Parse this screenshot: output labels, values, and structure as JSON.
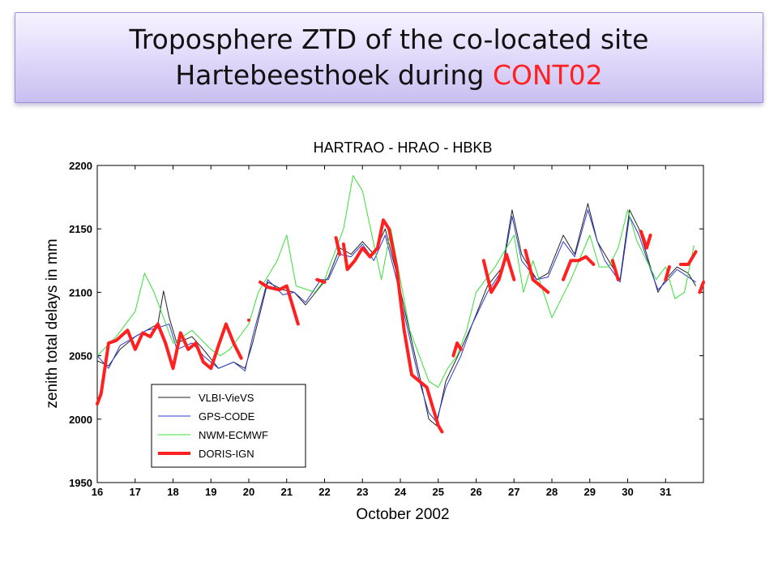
{
  "slide": {
    "title_line1": "Troposphere ZTD of the co-located site",
    "title_line2_prefix": "Hartebeesthoek during ",
    "title_line2_highlight": "CONT02",
    "highlight_color": "#ff2020"
  },
  "chart_data": {
    "type": "line",
    "title": "HARTRAO  - HRAO - HBKB",
    "xlabel": "October 2002",
    "ylabel": "zenith total delays in mm",
    "xlim": [
      16,
      32
    ],
    "ylim": [
      1950,
      2200
    ],
    "xticks": [
      16,
      17,
      18,
      19,
      20,
      21,
      22,
      23,
      24,
      25,
      26,
      27,
      28,
      29,
      30,
      31
    ],
    "yticks": [
      1950,
      2000,
      2050,
      2100,
      2150,
      2200
    ],
    "grid": false,
    "legend_position": "lower-left",
    "series": [
      {
        "name": "VLBI-VieVS",
        "color": "#222222",
        "width": 1,
        "x": [
          16.0,
          16.3,
          16.6,
          17.0,
          17.3,
          17.6,
          17.75,
          17.9,
          18.1,
          18.5,
          18.8,
          19.2,
          19.6,
          19.9,
          20.1,
          20.5,
          20.9,
          21.2,
          21.5,
          21.9,
          22.1,
          22.4,
          22.7,
          23.0,
          23.3,
          23.6,
          23.9,
          24.2,
          24.5,
          24.75,
          24.95,
          25.2,
          25.6,
          25.9,
          26.3,
          26.7,
          26.95,
          27.2,
          27.6,
          27.9,
          28.3,
          28.6,
          28.95,
          29.2,
          29.4,
          29.8,
          30.05,
          30.3,
          30.6,
          30.8,
          31.0,
          31.3,
          31.6,
          31.8
        ],
        "y": [
          2046,
          2042,
          2055,
          2065,
          2070,
          2075,
          2101,
          2080,
          2060,
          2065,
          2055,
          2040,
          2045,
          2040,
          2060,
          2108,
          2102,
          2100,
          2090,
          2105,
          2112,
          2135,
          2130,
          2140,
          2130,
          2150,
          2115,
          2075,
          2035,
          2000,
          1995,
          2030,
          2055,
          2075,
          2105,
          2120,
          2165,
          2130,
          2110,
          2115,
          2145,
          2130,
          2170,
          2140,
          2130,
          2110,
          2165,
          2150,
          2120,
          2100,
          2110,
          2120,
          2115,
          2105
        ]
      },
      {
        "name": "GPS-CODE",
        "color": "#2a3bd0",
        "width": 1,
        "x": [
          16.0,
          16.3,
          16.6,
          17.0,
          17.3,
          17.6,
          17.9,
          18.1,
          18.5,
          18.8,
          19.2,
          19.6,
          19.9,
          20.1,
          20.5,
          20.9,
          21.2,
          21.5,
          21.9,
          22.1,
          22.4,
          22.7,
          23.0,
          23.3,
          23.6,
          23.9,
          24.2,
          24.5,
          24.75,
          24.95,
          25.2,
          25.6,
          25.9,
          26.3,
          26.7,
          26.95,
          27.2,
          27.6,
          27.9,
          28.3,
          28.6,
          28.95,
          29.2,
          29.4,
          29.8,
          30.05,
          30.3,
          30.6,
          30.8,
          31.0,
          31.3,
          31.6,
          31.8
        ],
        "y": [
          2050,
          2040,
          2058,
          2065,
          2070,
          2072,
          2075,
          2055,
          2060,
          2050,
          2040,
          2045,
          2038,
          2065,
          2110,
          2098,
          2100,
          2092,
          2110,
          2110,
          2130,
          2128,
          2138,
          2125,
          2145,
          2110,
          2070,
          2030,
          2005,
          1998,
          2025,
          2050,
          2075,
          2100,
          2118,
          2160,
          2125,
          2110,
          2112,
          2140,
          2128,
          2165,
          2140,
          2125,
          2108,
          2160,
          2145,
          2118,
          2102,
          2108,
          2118,
          2112,
          2108
        ]
      },
      {
        "name": "NWM-ECMWF",
        "color": "#38e038",
        "width": 1,
        "x": [
          16.0,
          16.5,
          17.0,
          17.25,
          17.5,
          18.0,
          18.5,
          19.0,
          19.25,
          19.5,
          20.0,
          20.25,
          20.75,
          21.0,
          21.25,
          21.75,
          22.0,
          22.25,
          22.5,
          22.75,
          23.0,
          23.25,
          23.5,
          23.75,
          24.0,
          24.25,
          24.5,
          24.75,
          25.0,
          25.25,
          25.5,
          25.75,
          26.0,
          26.5,
          27.0,
          27.25,
          27.5,
          28.0,
          28.25,
          28.5,
          29.0,
          29.25,
          29.5,
          29.75,
          30.0,
          30.25,
          30.5,
          30.75,
          31.0,
          31.25,
          31.5,
          31.75
        ],
        "y": [
          2050,
          2065,
          2085,
          2115,
          2100,
          2060,
          2070,
          2055,
          2050,
          2055,
          2075,
          2100,
          2125,
          2145,
          2105,
          2100,
          2110,
          2130,
          2150,
          2192,
          2180,
          2145,
          2110,
          2150,
          2110,
          2070,
          2050,
          2030,
          2025,
          2040,
          2050,
          2070,
          2100,
          2120,
          2145,
          2100,
          2125,
          2080,
          2095,
          2110,
          2145,
          2120,
          2120,
          2135,
          2165,
          2140,
          2125,
          2110,
          2120,
          2095,
          2100,
          2137
        ]
      },
      {
        "name": "DORIS-IGN",
        "color": "#ff2020",
        "width": 4,
        "x": [
          16.0,
          16.1,
          16.3,
          16.5,
          16.8,
          17.0,
          17.2,
          17.4,
          17.6,
          17.8,
          18.0,
          18.2,
          18.4,
          18.6,
          18.8,
          19.0,
          19.2,
          19.4,
          19.6,
          19.8,
          20.0
        ],
        "y": [
          2012,
          2020,
          2060,
          2062,
          2070,
          2055,
          2068,
          2065,
          2075,
          2060,
          2040,
          2068,
          2055,
          2060,
          2045,
          2040,
          2058,
          2075,
          2060,
          2048,
          2078
        ],
        "gaps_after": [],
        "segments": [
          {
            "x": [
              16.0,
              16.1,
              16.3,
              16.5,
              16.8,
              17.0,
              17.2,
              17.4,
              17.6,
              17.8,
              18.0,
              18.2,
              18.4,
              18.6,
              18.8,
              19.0,
              19.2,
              19.4,
              19.6,
              19.8
            ],
            "y": [
              2012,
              2020,
              2060,
              2062,
              2070,
              2055,
              2068,
              2065,
              2075,
              2060,
              2040,
              2068,
              2055,
              2060,
              2045,
              2040,
              2058,
              2075,
              2060,
              2048
            ]
          },
          {
            "x": [
              20.0
            ],
            "y": [
              2078
            ]
          },
          {
            "x": [
              20.3,
              20.5,
              20.8,
              21.0,
              21.1,
              21.3
            ],
            "y": [
              2108,
              2104,
              2102,
              2105,
              2095,
              2075
            ]
          },
          {
            "x": [
              21.8,
              22.0
            ],
            "y": [
              2110,
              2108
            ]
          },
          {
            "x": [
              22.3,
              22.4
            ],
            "y": [
              2143,
              2130
            ]
          },
          {
            "x": [
              22.5,
              22.6,
              22.8,
              23.0,
              23.2,
              23.4,
              23.55,
              23.7,
              23.9,
              24.1,
              24.3,
              24.5,
              24.7,
              24.85,
              25.0,
              25.1
            ],
            "y": [
              2138,
              2118,
              2125,
              2135,
              2128,
              2135,
              2157,
              2150,
              2120,
              2070,
              2035,
              2030,
              2025,
              2010,
              1995,
              1990
            ]
          },
          {
            "x": [
              25.4,
              25.5,
              25.6
            ],
            "y": [
              2050,
              2060,
              2055
            ]
          },
          {
            "x": [
              26.2,
              26.4,
              26.6,
              26.8,
              27.0
            ],
            "y": [
              2125,
              2100,
              2110,
              2130,
              2110
            ]
          },
          {
            "x": [
              27.3,
              27.5,
              27.7,
              27.9
            ],
            "y": [
              2133,
              2110,
              2105,
              2100
            ]
          },
          {
            "x": [
              28.3,
              28.5,
              28.7,
              28.9,
              29.1
            ],
            "y": [
              2110,
              2125,
              2125,
              2128,
              2122
            ]
          },
          {
            "x": [
              29.6,
              29.75
            ],
            "y": [
              2125,
              2110
            ]
          },
          {
            "x": [
              30.35,
              30.5,
              30.6
            ],
            "y": [
              2148,
              2135,
              2145
            ]
          },
          {
            "x": [
              31.0,
              31.1
            ],
            "y": [
              2110,
              2120
            ]
          },
          {
            "x": [
              31.4,
              31.6,
              31.8
            ],
            "y": [
              2122,
              2122,
              2132
            ]
          },
          {
            "x": [
              31.9,
              32.0
            ],
            "y": [
              2100,
              2108
            ]
          }
        ]
      }
    ]
  }
}
